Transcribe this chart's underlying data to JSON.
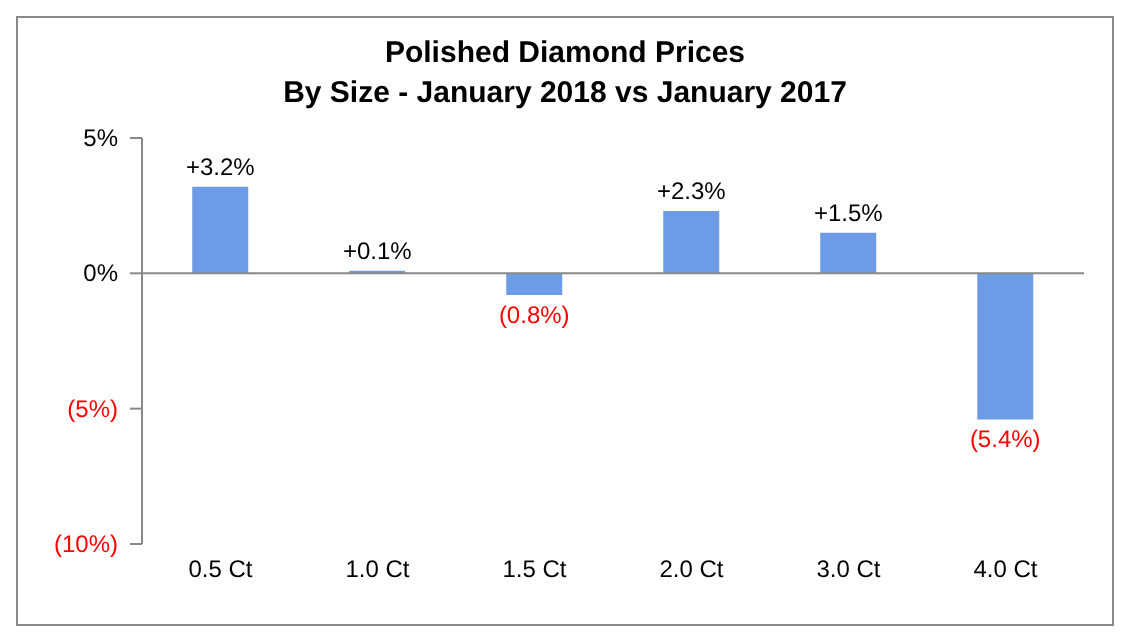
{
  "chart_data": {
    "type": "bar",
    "title": "Polished Diamond Prices\nBy Size - January 2018 vs January 2017",
    "categories": [
      "0.5 Ct",
      "1.0 Ct",
      "1.5 Ct",
      "2.0 Ct",
      "3.0 Ct",
      "4.0 Ct"
    ],
    "values": [
      3.2,
      0.1,
      -0.8,
      2.3,
      1.5,
      -5.4
    ],
    "value_labels": [
      "+3.2%",
      "+0.1%",
      "(0.8%)",
      "+2.3%",
      "+1.5%",
      "(5.4%)"
    ],
    "color": "#6d9be6",
    "ylim": [
      -10,
      5
    ],
    "yticks": [
      {
        "value": -10,
        "label": "(10%)"
      },
      {
        "value": -5,
        "label": "(5%)"
      },
      {
        "value": 0,
        "label": "0%"
      },
      {
        "value": 5,
        "label": "5%"
      }
    ],
    "ref_lines": [
      {
        "axis": "y",
        "value": 0
      }
    ],
    "grid": false,
    "legend": false
  }
}
